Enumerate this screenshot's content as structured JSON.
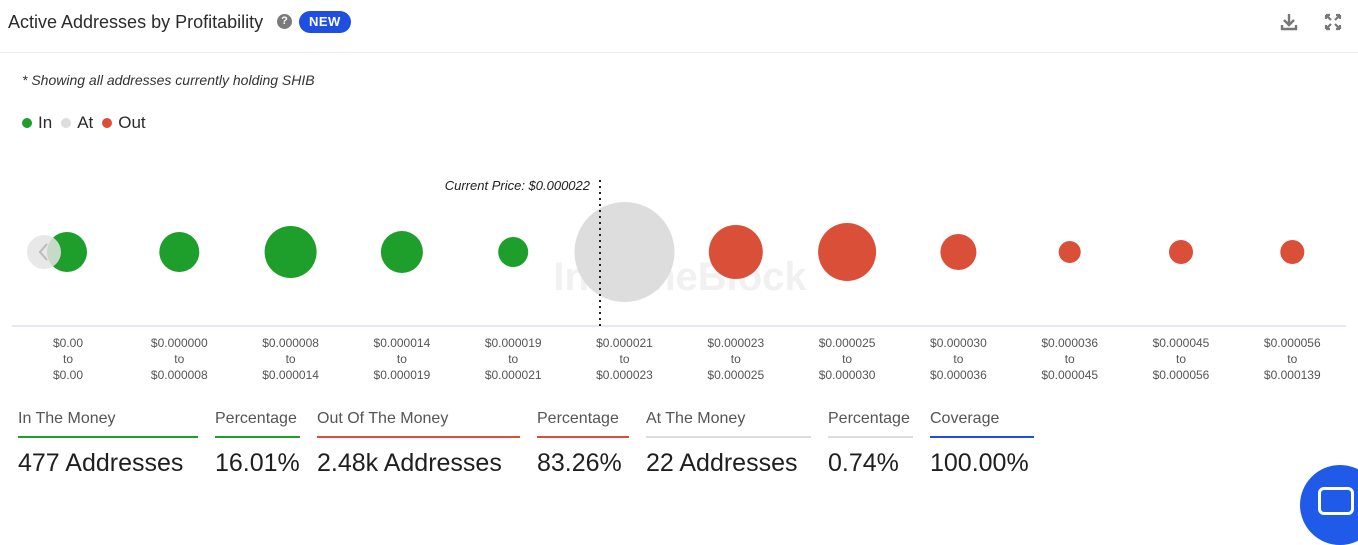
{
  "header": {
    "title": "Active Addresses by Profitability",
    "help_icon": "question-circle-icon",
    "badge": "NEW",
    "badge_color": "#1f4fe0",
    "actions": [
      "download-icon",
      "expand-icon"
    ]
  },
  "note": "* Showing all addresses currently holding SHIB",
  "legend": [
    {
      "label": "In",
      "color": "#1e9e2a"
    },
    {
      "label": "At",
      "color": "#dddddd"
    },
    {
      "label": "Out",
      "color": "#d94f38"
    }
  ],
  "chart_data": {
    "type": "scatter",
    "current_price_label": "Current Price: $0.000022",
    "current_price_position": "between $0.000019 – $0.000021 and $0.000021 – $0.000023",
    "watermark": "IntoTheBlock",
    "categories": [
      {
        "from": "$0.00",
        "to": "$0.00"
      },
      {
        "from": "$0.000000",
        "to": "$0.000008"
      },
      {
        "from": "$0.000008",
        "to": "$0.000014"
      },
      {
        "from": "$0.000014",
        "to": "$0.000019"
      },
      {
        "from": "$0.000019",
        "to": "$0.000021"
      },
      {
        "from": "$0.000021",
        "to": "$0.000023"
      },
      {
        "from": "$0.000023",
        "to": "$0.000025"
      },
      {
        "from": "$0.000025",
        "to": "$0.000030"
      },
      {
        "from": "$0.000030",
        "to": "$0.000036"
      },
      {
        "from": "$0.000036",
        "to": "$0.000045"
      },
      {
        "from": "$0.000045",
        "to": "$0.000056"
      },
      {
        "from": "$0.000056",
        "to": "$0.000139"
      }
    ],
    "series": [
      {
        "name": "In",
        "color": "#1e9e2a",
        "bubble_size": [
          20,
          20,
          26,
          21,
          15,
          null,
          null,
          null,
          null,
          null,
          null,
          null
        ]
      },
      {
        "name": "At",
        "color": "#dddddd",
        "bubble_size": [
          null,
          null,
          null,
          null,
          null,
          50,
          null,
          null,
          null,
          null,
          null,
          null
        ]
      },
      {
        "name": "Out",
        "color": "#d94f38",
        "bubble_size": [
          null,
          null,
          null,
          null,
          null,
          null,
          27,
          29,
          18,
          11,
          12,
          12
        ]
      }
    ]
  },
  "stats": [
    {
      "label": "In The Money",
      "value": "477 Addresses",
      "color": "#1e9e2a"
    },
    {
      "label": "Percentage",
      "value": "16.01%",
      "color": "#1e9e2a"
    },
    {
      "label": "Out Of The Money",
      "value": "2.48k Addresses",
      "color": "#d94f38"
    },
    {
      "label": "Percentage",
      "value": "83.26%",
      "color": "#d94f38"
    },
    {
      "label": "At The Money",
      "value": "22 Addresses",
      "color": "#dddddd"
    },
    {
      "label": "Percentage",
      "value": "0.74%",
      "color": "#dddddd"
    },
    {
      "label": "Coverage",
      "value": "100.00%",
      "color": "#1f4fe0"
    }
  ],
  "chat_icon": "chat-bubble-icon"
}
